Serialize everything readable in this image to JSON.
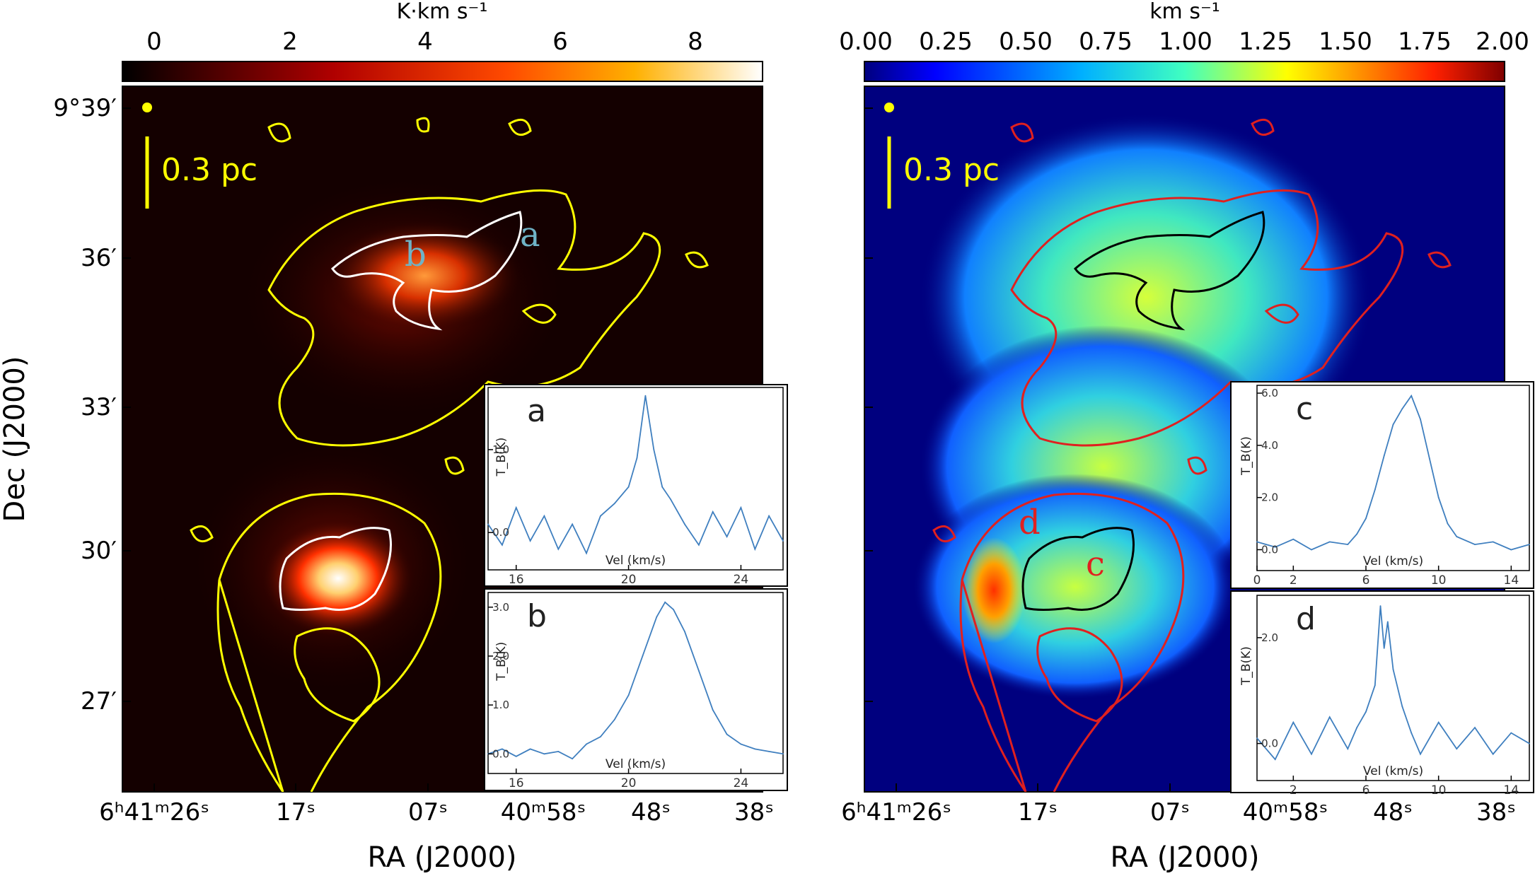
{
  "colors": {
    "contour_left": "#ffff00",
    "contour_left_inner": "#ffffff",
    "contour_right": "#e0201f",
    "contour_right_inner": "#000000",
    "beam": "#ffff00",
    "scalebar": "#ffff00",
    "spectrum_line": "#3f7fbf",
    "left_label": "#6fb3c6",
    "right_label": "#e0201f",
    "left_background": "#140000",
    "right_background": "#00007f"
  },
  "left_panel": {
    "colorbar_unit": "K·km s⁻¹",
    "colorbar_ticks": [
      "0",
      "2",
      "4",
      "6",
      "8"
    ],
    "colormap": "hot",
    "scalebar": "0.3 pc",
    "dec_axis_label": "Dec (J2000)",
    "ra_axis_label": "RA (J2000)",
    "dec_ticks": [
      "9°39′",
      "36′",
      "33′",
      "30′",
      "27′"
    ],
    "ra_ticks": [
      "6ʰ41ᵐ26ˢ",
      "17ˢ",
      "07ˢ",
      "40ᵐ58ˢ",
      "48ˢ",
      "38ˢ"
    ],
    "region_labels": [
      "a",
      "b"
    ]
  },
  "right_panel": {
    "colorbar_unit": "km s⁻¹",
    "colorbar_ticks": [
      "0.00",
      "0.25",
      "0.50",
      "0.75",
      "1.00",
      "1.25",
      "1.50",
      "1.75",
      "2.00"
    ],
    "colormap": "jet",
    "scalebar": "0.3 pc",
    "ra_axis_label": "RA (J2000)",
    "ra_ticks": [
      "6ʰ41ᵐ26ˢ",
      "17ˢ",
      "07ˢ",
      "40ᵐ58ˢ",
      "48ˢ",
      "38ˢ"
    ],
    "region_labels": [
      "c",
      "d"
    ]
  },
  "chart_data": [
    {
      "type": "line",
      "panel": "a",
      "xlabel": "Vel (km/s)",
      "ylabel": "T_B(K)",
      "xlim": [
        15,
        25.5
      ],
      "ylim": [
        -0.45,
        1.75
      ],
      "xticks": [
        "16",
        "20",
        "24"
      ],
      "yticks": [
        "0.0",
        "1.0"
      ],
      "x": [
        15.0,
        15.5,
        16.0,
        16.5,
        17.0,
        17.5,
        18.0,
        18.5,
        19.0,
        19.5,
        20.0,
        20.3,
        20.6,
        20.9,
        21.2,
        21.5,
        22.0,
        22.5,
        23.0,
        23.5,
        24.0,
        24.5,
        25.0,
        25.5
      ],
      "values": [
        0.1,
        -0.15,
        0.3,
        -0.1,
        0.2,
        -0.2,
        0.1,
        -0.25,
        0.2,
        0.35,
        0.55,
        0.9,
        1.65,
        1.0,
        0.55,
        0.4,
        0.1,
        -0.15,
        0.25,
        -0.05,
        0.3,
        -0.2,
        0.2,
        -0.1
      ]
    },
    {
      "type": "line",
      "panel": "b",
      "xlabel": "Vel (km/s)",
      "ylabel": "T_B(K)",
      "xlim": [
        15,
        25.5
      ],
      "ylim": [
        -0.4,
        3.3
      ],
      "xticks": [
        "16",
        "20",
        "24"
      ],
      "yticks": [
        "0.0",
        "1.0",
        "2.0",
        "3.0"
      ],
      "x": [
        15.0,
        15.5,
        16.0,
        16.5,
        17.0,
        17.5,
        18.0,
        18.5,
        19.0,
        19.5,
        20.0,
        20.5,
        21.0,
        21.3,
        21.6,
        22.0,
        22.5,
        23.0,
        23.5,
        24.0,
        24.5,
        25.0,
        25.5
      ],
      "values": [
        0.0,
        0.1,
        -0.05,
        0.1,
        0.0,
        0.05,
        -0.1,
        0.2,
        0.35,
        0.7,
        1.2,
        2.0,
        2.8,
        3.1,
        2.95,
        2.5,
        1.7,
        0.9,
        0.4,
        0.2,
        0.1,
        0.05,
        0.0
      ]
    },
    {
      "type": "line",
      "panel": "c",
      "xlabel": "Vel (km/s)",
      "ylabel": "T_B(K)",
      "xlim": [
        0,
        15
      ],
      "ylim": [
        -0.8,
        6.3
      ],
      "xticks": [
        "0",
        "2",
        "6",
        "10",
        "14"
      ],
      "yticks": [
        "0.0",
        "2.0",
        "4.0",
        "6.0"
      ],
      "x": [
        0,
        1,
        2,
        3,
        4,
        5,
        5.5,
        6.0,
        6.5,
        7.0,
        7.5,
        8.0,
        8.5,
        9.0,
        9.5,
        10.0,
        10.5,
        11,
        12,
        13,
        14,
        15
      ],
      "values": [
        0.3,
        0.1,
        0.4,
        0.0,
        0.3,
        0.2,
        0.6,
        1.2,
        2.3,
        3.6,
        4.8,
        5.4,
        5.9,
        5.0,
        3.5,
        2.0,
        1.0,
        0.5,
        0.2,
        0.3,
        0.0,
        0.2
      ]
    },
    {
      "type": "line",
      "panel": "d",
      "xlabel": "Vel (km/s)",
      "ylabel": "T_B(K)",
      "xlim": [
        0,
        15
      ],
      "ylim": [
        -0.7,
        2.8
      ],
      "xticks": [
        "2",
        "6",
        "10",
        "14"
      ],
      "yticks": [
        "0.0",
        "2.0"
      ],
      "x": [
        0,
        1,
        2,
        3,
        4,
        5,
        5.5,
        6.0,
        6.5,
        6.8,
        7.0,
        7.2,
        7.5,
        8.0,
        8.5,
        9.0,
        10,
        11,
        12,
        13,
        14,
        15
      ],
      "values": [
        0.1,
        -0.3,
        0.4,
        -0.2,
        0.5,
        -0.1,
        0.3,
        0.6,
        1.1,
        2.6,
        1.8,
        2.3,
        1.4,
        0.7,
        0.2,
        -0.2,
        0.4,
        -0.1,
        0.3,
        -0.2,
        0.2,
        0.0
      ]
    }
  ]
}
